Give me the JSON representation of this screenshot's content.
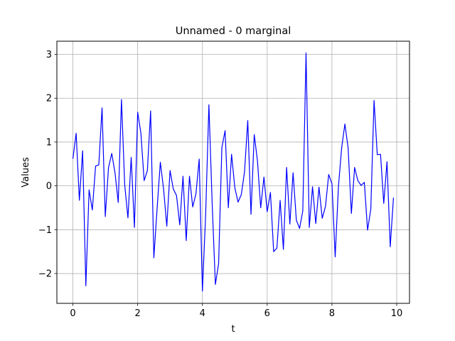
{
  "chart_data": {
    "type": "line",
    "title": "Unnamed - 0 marginal",
    "xlabel": "t",
    "ylabel": "Values",
    "xlim": [
      -0.495,
      10.395
    ],
    "ylim": [
      -2.68,
      3.3
    ],
    "xticks": [
      0,
      2,
      4,
      6,
      8,
      10
    ],
    "xtick_labels": [
      "0",
      "2",
      "4",
      "6",
      "8",
      "10"
    ],
    "yticks": [
      -2,
      -1,
      0,
      1,
      2,
      3
    ],
    "ytick_labels": [
      "−2",
      "−1",
      "0",
      "1",
      "2",
      "3"
    ],
    "grid": true,
    "colors": {
      "line": "#0000ff",
      "grid": "#b0b0b0",
      "axes": "#000000"
    },
    "series": [
      {
        "x": [
          0.0,
          0.1,
          0.2,
          0.3,
          0.4,
          0.5,
          0.6,
          0.7,
          0.8,
          0.9,
          1.0,
          1.1,
          1.2,
          1.3,
          1.4,
          1.5,
          1.6,
          1.7,
          1.8,
          1.9,
          2.0,
          2.1,
          2.2,
          2.3,
          2.4,
          2.5,
          2.6,
          2.7,
          2.8,
          2.9,
          3.0,
          3.1,
          3.2,
          3.3,
          3.4,
          3.5,
          3.6,
          3.7,
          3.8,
          3.9,
          4.0,
          4.1,
          4.2,
          4.3,
          4.4,
          4.5,
          4.6,
          4.7,
          4.8,
          4.9,
          5.0,
          5.1,
          5.2,
          5.3,
          5.4,
          5.5,
          5.6,
          5.7,
          5.8,
          5.9,
          6.0,
          6.1,
          6.2,
          6.3,
          6.4,
          6.5,
          6.6,
          6.7,
          6.8,
          6.9,
          7.0,
          7.1,
          7.2,
          7.3,
          7.4,
          7.5,
          7.6,
          7.7,
          7.8,
          7.9,
          8.0,
          8.1,
          8.2,
          8.3,
          8.4,
          8.5,
          8.6,
          8.7,
          8.8,
          8.9,
          9.0,
          9.1,
          9.2,
          9.3,
          9.4,
          9.5,
          9.6,
          9.7,
          9.8,
          9.9
        ],
        "y": [
          0.62,
          1.2,
          -0.33,
          0.8,
          -2.28,
          -0.09,
          -0.55,
          0.45,
          0.48,
          1.78,
          -0.7,
          0.42,
          0.74,
          0.3,
          -0.38,
          1.97,
          0.02,
          -0.73,
          0.65,
          -0.95,
          1.68,
          1.2,
          0.12,
          0.35,
          1.71,
          -1.64,
          -0.52,
          0.54,
          -0.07,
          -0.92,
          0.35,
          -0.07,
          -0.22,
          -0.89,
          0.22,
          -1.25,
          0.22,
          -0.48,
          -0.18,
          0.61,
          -2.4,
          -0.64,
          1.85,
          -0.38,
          -2.25,
          -1.77,
          0.87,
          1.26,
          -0.5,
          0.72,
          -0.04,
          -0.37,
          -0.2,
          0.32,
          1.49,
          -0.65,
          1.17,
          0.57,
          -0.5,
          0.2,
          -0.59,
          -0.15,
          -1.5,
          -1.42,
          -0.33,
          -1.45,
          0.42,
          -0.87,
          0.3,
          -0.78,
          -0.97,
          -0.57,
          3.03,
          -0.95,
          -0.02,
          -0.86,
          -0.03,
          -0.74,
          -0.47,
          0.26,
          0.05,
          -1.62,
          -0.02,
          0.87,
          1.41,
          0.86,
          -0.63,
          0.42,
          0.12,
          0.01,
          0.08,
          -1.01,
          -0.53,
          1.95,
          0.71,
          0.72,
          -0.4,
          0.55,
          -1.39,
          -0.27
        ]
      }
    ]
  }
}
